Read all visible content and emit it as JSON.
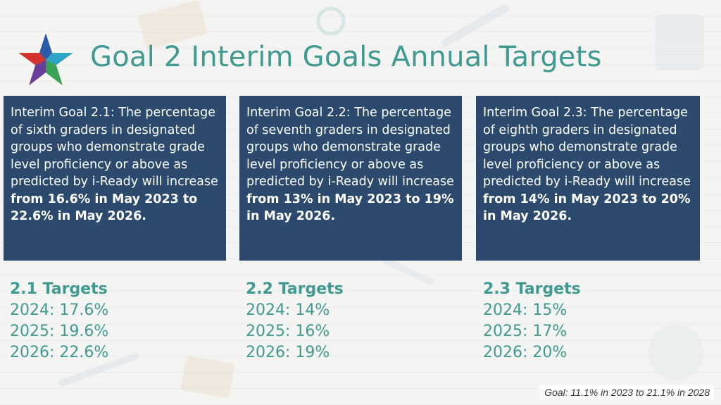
{
  "slide": {
    "title": "Goal 2 Interim Goals Annual Targets",
    "logo": "star-logo-icon",
    "accent_color": "#3f9a92",
    "box_color": "#2c4a6e"
  },
  "goals": [
    {
      "text_plain": "Interim Goal 2.1: The percentage of sixth graders in designated groups who demonstrate grade level proficiency or above as predicted by i-Ready will increase ",
      "text_bold": "from 16.6% in May 2023 to 22.6% in May 2026.",
      "targets_header": "2.1 Targets",
      "targets": [
        "2024: 17.6%",
        "2025: 19.6%",
        "2026: 22.6%"
      ]
    },
    {
      "text_plain": "Interim Goal 2.2: The percentage of seventh graders in designated groups who demonstrate grade level proficiency or above as predicted by i-Ready will increase ",
      "text_bold": "from 13% in May 2023 to 19% in May 2026.",
      "targets_header": "2.2 Targets",
      "targets": [
        "2024: 14%",
        "2025: 16%",
        "2026: 19%"
      ]
    },
    {
      "text_plain": "Interim Goal 2.3: The percentage of eighth graders in designated groups who demonstrate grade level proficiency or above as predicted by i-Ready will increase ",
      "text_bold": "from 14% in May 2023 to 20% in May 2026.",
      "targets_header": "2.3 Targets",
      "targets": [
        "2024: 15%",
        "2025: 17%",
        "2026: 20%"
      ]
    }
  ],
  "footer": "Goal: 11.1% in 2023 to 21.1% in 2028"
}
